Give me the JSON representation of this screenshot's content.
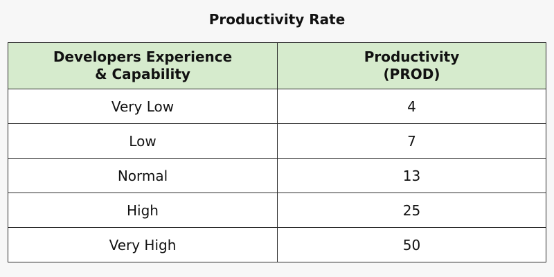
{
  "title": "Productivity Rate",
  "table": {
    "header": {
      "col1_line1": "Developers Experience",
      "col1_line2": "& Capability",
      "col2_line1": "Productivity",
      "col2_line2": "(PROD)"
    },
    "rows": [
      {
        "experience": "Very Low",
        "prod": "4"
      },
      {
        "experience": "Low",
        "prod": "7"
      },
      {
        "experience": "Normal",
        "prod": "13"
      },
      {
        "experience": "High",
        "prod": "25"
      },
      {
        "experience": "Very High",
        "prod": "50"
      }
    ]
  },
  "colors": {
    "header_bg": "#d6ebcd",
    "border": "#2a2a2a",
    "page_bg": "#f7f7f7"
  }
}
